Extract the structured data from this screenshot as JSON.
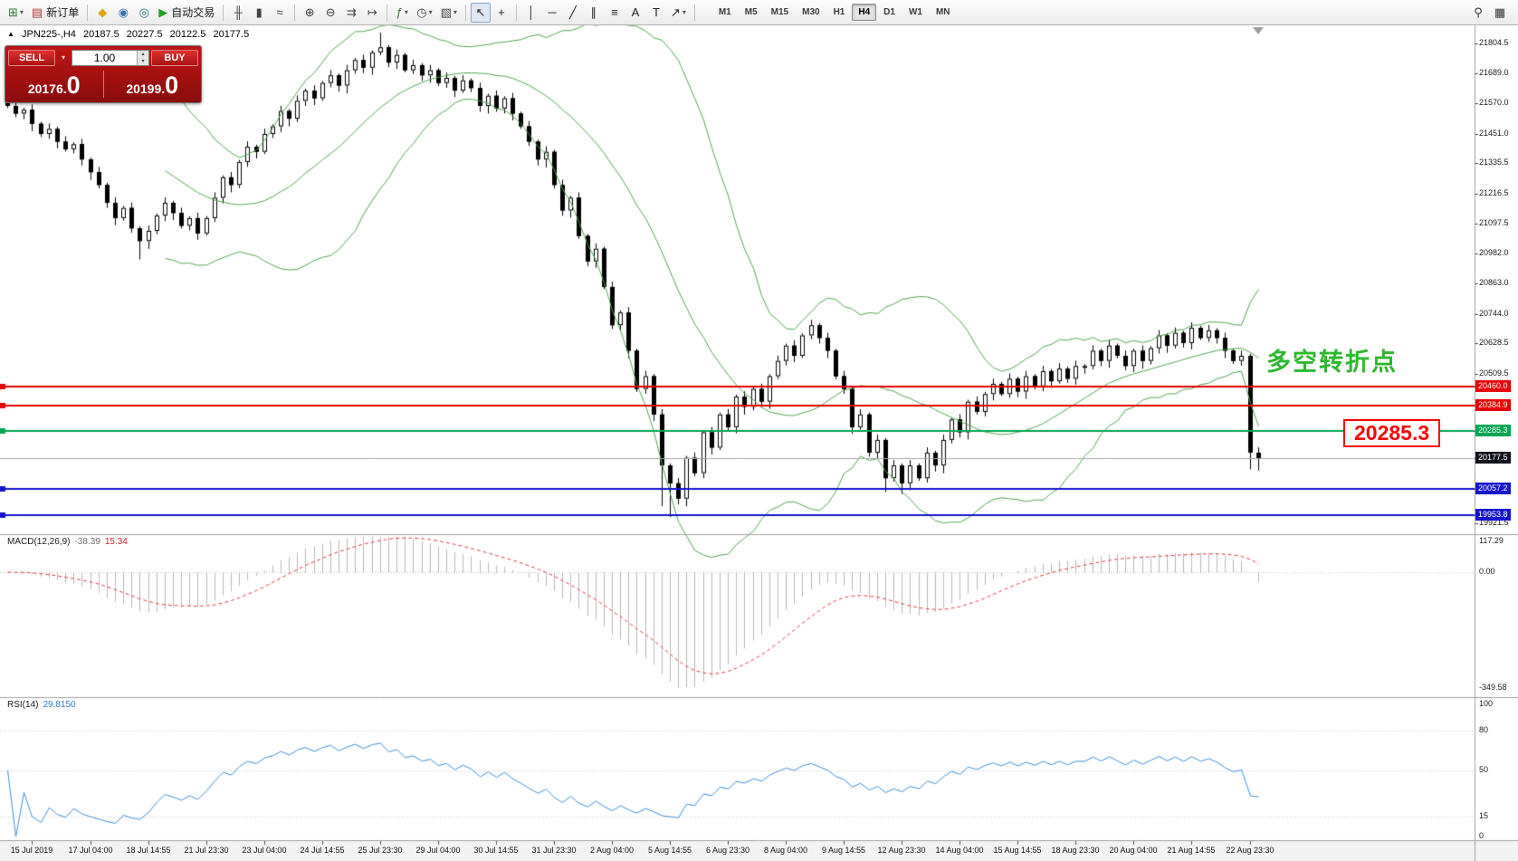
{
  "toolbar": {
    "items": [
      {
        "name": "new-chart-button",
        "glyph": "⊞",
        "color": "#2e7d32",
        "dropdown": true
      },
      {
        "name": "new-order-button",
        "glyph": "▤",
        "color": "#b03a3a",
        "label": "新订单"
      },
      {
        "sep": true
      },
      {
        "name": "metaeditor-button",
        "glyph": "◆",
        "color": "#dfa400"
      },
      {
        "name": "community-button",
        "glyph": "◉",
        "color": "#3b6fb5"
      },
      {
        "name": "data-window-button",
        "glyph": "◎",
        "color": "#2a7a8c"
      },
      {
        "name": "autotrading-button",
        "glyph": "▶",
        "color": "#1fa41f",
        "label": "自动交易"
      },
      {
        "sep": true
      },
      {
        "name": "bar-chart-button",
        "glyph": "╫",
        "color": "#444444"
      },
      {
        "name": "candlestick-chart-button",
        "glyph": "▮",
        "color": "#444444"
      },
      {
        "name": "line-chart-button",
        "glyph": "≈",
        "color": "#444444"
      },
      {
        "sep": true
      },
      {
        "name": "zoom-in-button",
        "glyph": "⊕",
        "color": "#444444"
      },
      {
        "name": "zoom-out-button",
        "glyph": "⊖",
        "color": "#444444"
      },
      {
        "name": "auto-scroll-button",
        "glyph": "⇉",
        "color": "#444444"
      },
      {
        "name": "chart-shift-button",
        "glyph": "↦",
        "color": "#444444"
      },
      {
        "sep": true
      },
      {
        "name": "indicators-button",
        "glyph": "ƒ",
        "color": "#2e7d32",
        "dropdown": true
      },
      {
        "name": "periods-button",
        "glyph": "◷",
        "color": "#444444",
        "dropdown": true
      },
      {
        "name": "templates-button",
        "glyph": "▧",
        "color": "#444444",
        "dropdown": true
      },
      {
        "sep": true
      },
      {
        "name": "cursor-button",
        "glyph": "↖",
        "color": "#222222",
        "active": true
      },
      {
        "name": "crosshair-button",
        "glyph": "+",
        "color": "#222222"
      },
      {
        "sep": true
      },
      {
        "name": "vertical-line-button",
        "glyph": "│",
        "color": "#222222"
      },
      {
        "name": "horizontal-line-button",
        "glyph": "─",
        "color": "#222222"
      },
      {
        "name": "trendline-button",
        "glyph": "╱",
        "color": "#222222"
      },
      {
        "name": "channel-button",
        "glyph": "∥",
        "color": "#222222"
      },
      {
        "name": "fibonacci-button",
        "glyph": "≡",
        "color": "#222222"
      },
      {
        "name": "text-button",
        "glyph": "A",
        "color": "#222222"
      },
      {
        "name": "text-label-button",
        "glyph": "T",
        "color": "#222222"
      },
      {
        "name": "arrows-tool-button",
        "glyph": "↗",
        "color": "#222222",
        "dropdown": true
      },
      {
        "sep": true
      }
    ],
    "timeframes": [
      "M1",
      "M5",
      "M15",
      "M30",
      "H1",
      "H4",
      "D1",
      "W1",
      "MN"
    ],
    "active_timeframe": "H4",
    "right_items": [
      {
        "name": "search-button",
        "glyph": "⚲",
        "color": "#333333"
      },
      {
        "name": "chart-windows-button",
        "glyph": "▦",
        "color": "#333333"
      }
    ]
  },
  "trade_panel": {
    "sell_label": "SELL",
    "buy_label": "BUY",
    "volume": "1.00",
    "dropdown_icon": "▾",
    "spinner_up": "▴",
    "spinner_down": "▾",
    "sell_price_main": "20176.",
    "sell_price_big": "0",
    "buy_price_main": "20199.",
    "buy_price_big": "0"
  },
  "chart": {
    "marker": "▲",
    "symbol": "JPN225-,H4",
    "ohlc_display": {
      "open": "20187.5",
      "high": "20227.5",
      "low": "20122.5",
      "close": "20177.5"
    },
    "price_axis": {
      "ticks": [
        21804.5,
        21689.0,
        21570.0,
        21451.0,
        21335.5,
        21216.5,
        21097.5,
        20982.0,
        20863.0,
        20744.0,
        20628.5,
        20509.5,
        19921.5
      ]
    },
    "levels": [
      {
        "price": 20460.0,
        "label": "20460.0",
        "color": "#e60000"
      },
      {
        "price": 20384.9,
        "label": "20384.9",
        "color": "#e60000"
      },
      {
        "price": 20285.3,
        "label": "20285.3",
        "color": "#00a651"
      },
      {
        "price": 20057.2,
        "label": "20057.2",
        "color": "#1414cc"
      },
      {
        "price": 19953.8,
        "label": "19953.8",
        "color": "#1414cc"
      }
    ],
    "bid": {
      "price": 20177.5,
      "label": "20177.5"
    },
    "annotations": {
      "turning_point": {
        "text": "多空转折点",
        "color": "#2eb82e"
      },
      "price_box": {
        "text": "20285.3",
        "color": "#ff0000"
      }
    },
    "time_axis": {
      "labels": [
        "15 Jul 2019",
        "17 Jul 04:00",
        "18 Jul 14:55",
        "21 Jul 23:30",
        "23 Jul 04:00",
        "24 Jul 14:55",
        "25 Jul 23:30",
        "29 Jul 04:00",
        "30 Jul 14:55",
        "31 Jul 23:30",
        "2 Aug 04:00",
        "5 Aug 14:55",
        "6 Aug 23:30",
        "8 Aug 04:00",
        "9 Aug 14:55",
        "12 Aug 23:30",
        "14 Aug 04:00",
        "15 Aug 14:55",
        "18 Aug 23:30",
        "20 Aug 04:00",
        "21 Aug 14:55",
        "22 Aug 23:30"
      ],
      "bars": [
        3,
        10,
        17,
        24,
        31,
        38,
        45,
        52,
        59,
        66,
        73,
        80,
        87,
        94,
        101,
        108,
        115,
        122,
        129,
        136,
        143,
        150
      ]
    },
    "chart_data": {
      "type": "candlestick",
      "closes": [
        21560,
        21530,
        21545,
        21490,
        21450,
        21470,
        21420,
        21390,
        21410,
        21350,
        21300,
        21250,
        21180,
        21120,
        21160,
        21080,
        21030,
        21070,
        21130,
        21180,
        21140,
        21090,
        21120,
        21060,
        21120,
        21200,
        21280,
        21250,
        21340,
        21400,
        21380,
        21450,
        21480,
        21540,
        21510,
        21580,
        21620,
        21590,
        21650,
        21680,
        21640,
        21700,
        21740,
        21710,
        21770,
        21790,
        21730,
        21760,
        21700,
        21720,
        21680,
        21700,
        21650,
        21670,
        21620,
        21660,
        21630,
        21560,
        21600,
        21550,
        21590,
        21530,
        21480,
        21420,
        21350,
        21380,
        21250,
        21150,
        21200,
        21050,
        20950,
        21000,
        20850,
        20700,
        20750,
        20600,
        20450,
        20500,
        20350,
        20150,
        20080,
        20020,
        20180,
        20120,
        20280,
        20220,
        20350,
        20300,
        20420,
        20380,
        20450,
        20400,
        20500,
        20560,
        20620,
        20580,
        20660,
        20700,
        20650,
        20600,
        20500,
        20450,
        20300,
        20350,
        20200,
        20250,
        20100,
        20150,
        20080,
        20150,
        20100,
        20200,
        20150,
        20250,
        20330,
        20280,
        20400,
        20360,
        20430,
        20470,
        20430,
        20490,
        20440,
        20500,
        20460,
        20520,
        20480,
        20530,
        20490,
        20540,
        20540,
        20600,
        20560,
        20620,
        20580,
        20540,
        20600,
        20560,
        20610,
        20660,
        20620,
        20670,
        20630,
        20690,
        20650,
        20680,
        20650,
        20600,
        20560,
        20580,
        20200,
        20177.5
      ],
      "wick_overrides": {
        "16": {
          "low": 20958
        },
        "45": {
          "high": 21848
        },
        "79": {
          "low": 19990
        },
        "80": {
          "low": 19948
        },
        "106": {
          "low": 20046
        },
        "108": {
          "low": 20038
        },
        "150": {
          "low": 20135
        },
        "151": {
          "low": 20130
        }
      },
      "bollinger": {
        "period": 20,
        "deviation": 2
      }
    }
  },
  "macd": {
    "title": "MACD(12,26,9)",
    "value_main": "-38.39",
    "value_signal": "15.34",
    "fast": 12,
    "slow": 26,
    "signal": 9,
    "axis_labels": [
      "117.29",
      "0.00",
      "-349.58"
    ]
  },
  "rsi": {
    "title": "RSI(14)",
    "value": "29.8150",
    "period": 14,
    "axis_labels": [
      "100",
      "80",
      "50",
      "15",
      "0"
    ],
    "axis_values": [
      100,
      80,
      50,
      15,
      0
    ],
    "levels": [
      80,
      50,
      15
    ]
  },
  "colors": {
    "bollinger": "#4da64d",
    "macd_hist": "#b9b9b9",
    "macd_signal": "#e03c3c",
    "rsi_line": "#3c8fd9",
    "bid_label_bg": "#12121c",
    "candle_up": "#ffffff",
    "candle_down": "#000000"
  }
}
